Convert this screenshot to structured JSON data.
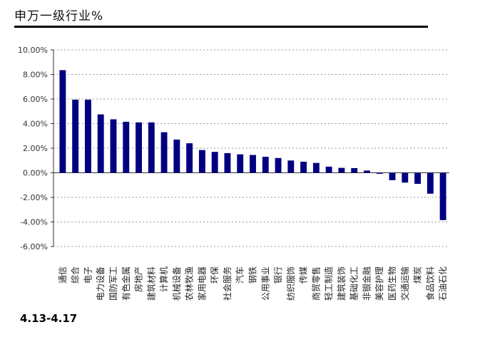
{
  "header": {
    "title": "申万一级行业%",
    "date_range": "4.13-4.17"
  },
  "chart_data": {
    "type": "bar",
    "title": "申万一级行业%",
    "categories": [
      "通信",
      "综合",
      "电子",
      "电力设备",
      "国防军工",
      "有色金属",
      "房地产",
      "建筑材料",
      "计算机",
      "机械设备",
      "农林牧渔",
      "家用电器",
      "环保",
      "社会服务",
      "汽车",
      "钢铁",
      "公用事业",
      "银行",
      "纺织服饰",
      "传媒",
      "商贸零售",
      "轻工制造",
      "建筑装饰",
      "基础化工",
      "非银金融",
      "美容护理",
      "医药生物",
      "交通运输",
      "煤炭",
      "食品饮料",
      "石油石化"
    ],
    "values": [
      8.35,
      5.95,
      5.95,
      4.75,
      4.35,
      4.15,
      4.1,
      4.1,
      3.3,
      2.7,
      2.4,
      1.85,
      1.7,
      1.6,
      1.5,
      1.45,
      1.3,
      1.2,
      1.0,
      0.9,
      0.8,
      0.5,
      0.4,
      0.38,
      0.18,
      -0.08,
      -0.6,
      -0.8,
      -0.9,
      -1.7,
      -3.85
    ],
    "yticks": [
      "10.00%",
      "8.00%",
      "6.00%",
      "4.00%",
      "2.00%",
      "0.00%",
      "-2.00%",
      "-4.00%",
      "-6.00%"
    ],
    "ylim": [
      -6,
      10
    ],
    "bar_color": "#000080",
    "grid": "horizontal dotted",
    "xlabel": "",
    "ylabel": ""
  }
}
